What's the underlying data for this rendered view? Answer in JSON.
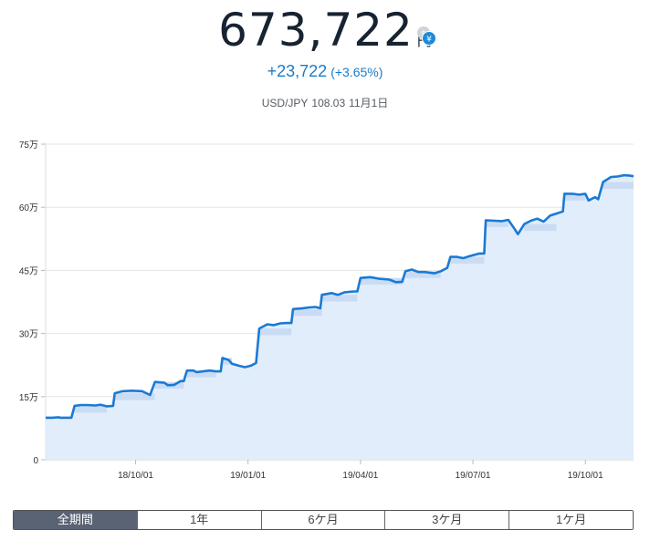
{
  "summary": {
    "value": "673,722",
    "unit": "円",
    "change_abs": "+23,722",
    "change_pct": "(+3.65%)",
    "fx_pair": "USD/JPY",
    "fx_rate": "108.03",
    "fx_date": "11月1日",
    "currency_icon": "dollar-yen-exchange-icon"
  },
  "colors": {
    "line": "#1a7ad4",
    "area": "#e2edfb",
    "accent_text": "#1b7cc8",
    "tab_active_bg": "#5a6374"
  },
  "tabs": [
    {
      "label": "全期間",
      "active": true
    },
    {
      "label": "1年",
      "active": false
    },
    {
      "label": "6ケ月",
      "active": false
    },
    {
      "label": "3ケ月",
      "active": false
    },
    {
      "label": "1ケ月",
      "active": false
    }
  ],
  "chart_data": {
    "type": "area",
    "x_tick_labels": [
      "18/10/01",
      "19/01/01",
      "19/04/01",
      "19/07/01",
      "19/10/01"
    ],
    "y_tick_labels": [
      "0",
      "15万",
      "30万",
      "45万",
      "60万",
      "75万"
    ],
    "ylim": [
      0,
      750000
    ],
    "grid": true,
    "legend": "none",
    "series": [
      {
        "values": [
          [
            0.0,
            100000
          ],
          [
            0.02,
            100000
          ],
          [
            0.04,
            101000
          ],
          [
            0.045,
            100000
          ],
          [
            0.07,
            100000
          ],
          [
            0.08,
            100000
          ],
          [
            0.09,
            128000
          ],
          [
            0.11,
            130000
          ],
          [
            0.13,
            130000
          ],
          [
            0.155,
            129000
          ],
          [
            0.17,
            131000
          ],
          [
            0.19,
            127000
          ],
          [
            0.21,
            128000
          ],
          [
            0.215,
            158000
          ],
          [
            0.24,
            163000
          ],
          [
            0.27,
            164000
          ],
          [
            0.3,
            163000
          ],
          [
            0.325,
            154000
          ],
          [
            0.34,
            185000
          ],
          [
            0.37,
            183000
          ],
          [
            0.38,
            177000
          ],
          [
            0.4,
            178000
          ],
          [
            0.42,
            187000
          ],
          [
            0.43,
            187000
          ],
          [
            0.44,
            212000
          ],
          [
            0.46,
            212000
          ],
          [
            0.47,
            208000
          ],
          [
            0.49,
            210000
          ],
          [
            0.51,
            212000
          ],
          [
            0.53,
            210000
          ],
          [
            0.545,
            210000
          ],
          [
            0.55,
            242000
          ],
          [
            0.57,
            237000
          ],
          [
            0.58,
            228000
          ],
          [
            0.6,
            224000
          ],
          [
            0.62,
            220000
          ],
          [
            0.64,
            224000
          ],
          [
            0.655,
            230000
          ],
          [
            0.665,
            312000
          ],
          [
            0.69,
            322000
          ],
          [
            0.71,
            320000
          ],
          [
            0.73,
            324000
          ],
          [
            0.75,
            325000
          ],
          [
            0.765,
            325000
          ],
          [
            0.77,
            358000
          ],
          [
            0.8,
            360000
          ],
          [
            0.82,
            362000
          ],
          [
            0.84,
            363000
          ],
          [
            0.855,
            360000
          ],
          [
            0.86,
            392000
          ],
          [
            0.89,
            396000
          ],
          [
            0.91,
            392000
          ],
          [
            0.93,
            398000
          ],
          [
            0.96,
            400000
          ],
          [
            0.97,
            400000
          ],
          [
            0.98,
            432000
          ],
          [
            1.01,
            434000
          ],
          [
            1.04,
            430000
          ],
          [
            1.07,
            428000
          ],
          [
            1.09,
            422000
          ],
          [
            1.11,
            423000
          ],
          [
            1.12,
            448000
          ],
          [
            1.14,
            452000
          ],
          [
            1.16,
            446000
          ],
          [
            1.18,
            446000
          ],
          [
            1.21,
            443000
          ],
          [
            1.23,
            448000
          ],
          [
            1.25,
            456000
          ],
          [
            1.26,
            482000
          ],
          [
            1.28,
            482000
          ],
          [
            1.3,
            479000
          ],
          [
            1.32,
            484000
          ],
          [
            1.35,
            490000
          ],
          [
            1.365,
            490000
          ],
          [
            1.37,
            569000
          ],
          [
            1.4,
            568000
          ],
          [
            1.42,
            567000
          ],
          [
            1.44,
            570000
          ],
          [
            1.46,
            548000
          ],
          [
            1.47,
            536000
          ],
          [
            1.49,
            560000
          ],
          [
            1.51,
            568000
          ],
          [
            1.53,
            573000
          ],
          [
            1.55,
            566000
          ],
          [
            1.57,
            580000
          ],
          [
            1.59,
            585000
          ],
          [
            1.61,
            590000
          ],
          [
            1.615,
            632000
          ],
          [
            1.64,
            632000
          ],
          [
            1.66,
            630000
          ],
          [
            1.68,
            632000
          ],
          [
            1.69,
            616000
          ],
          [
            1.71,
            624000
          ],
          [
            1.72,
            619000
          ],
          [
            1.735,
            660000
          ],
          [
            1.76,
            672000
          ],
          [
            1.78,
            673000
          ],
          [
            1.8,
            676000
          ],
          [
            1.82,
            675000
          ],
          [
            1.83,
            673722
          ]
        ]
      }
    ]
  }
}
